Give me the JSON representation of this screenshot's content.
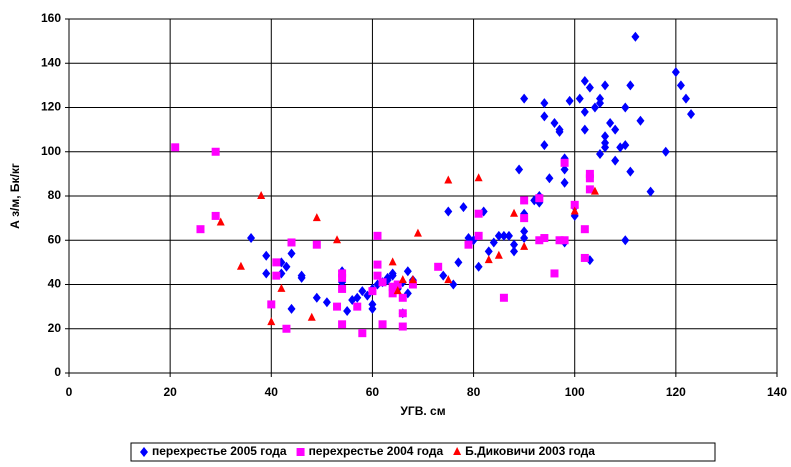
{
  "chart_data": {
    "type": "scatter",
    "x_label": "УГВ. см",
    "y_label": "А з/м, Бк/кг",
    "xlim": [
      0,
      140
    ],
    "xticks": [
      0,
      20,
      40,
      60,
      80,
      100,
      120,
      140
    ],
    "ylim": [
      0,
      160
    ],
    "yticks": [
      0,
      20,
      40,
      60,
      80,
      100,
      120,
      140,
      160
    ],
    "grid": true,
    "legend": "bottom",
    "series": [
      {
        "name": "перехрестье 2005 года",
        "color": "#0000ff",
        "marker": "diamond",
        "x": [
          36,
          39,
          39,
          42,
          42,
          43,
          44,
          44,
          46,
          46,
          49,
          51,
          54,
          54,
          55,
          56,
          57,
          58,
          59,
          60,
          60,
          60,
          61,
          62,
          63,
          63,
          64,
          64,
          65,
          66,
          66,
          67,
          67,
          68,
          74,
          76,
          77,
          75,
          78,
          79,
          80,
          81,
          82,
          83,
          84,
          85,
          86,
          87,
          88,
          88,
          89,
          90,
          90,
          90,
          90,
          92,
          93,
          93,
          94,
          94,
          94,
          95,
          96,
          97,
          97,
          98,
          98,
          98,
          98,
          99,
          100,
          100,
          101,
          102,
          102,
          102,
          103,
          103,
          104,
          105,
          105,
          106,
          106,
          106,
          106,
          105,
          107,
          108,
          108,
          109,
          110,
          110,
          110,
          111,
          111,
          112,
          113,
          115,
          118,
          120,
          121,
          122,
          123
        ],
        "values": [
          61,
          53,
          45,
          45,
          50,
          48,
          29,
          54,
          44,
          43,
          34,
          32,
          46,
          41,
          28,
          33,
          34,
          37,
          35,
          31,
          29,
          38,
          40,
          41,
          43,
          42,
          45,
          44,
          38,
          41,
          27,
          46,
          36,
          42,
          44,
          40,
          50,
          73,
          75,
          61,
          60,
          48,
          73,
          55,
          59,
          62,
          62,
          62,
          55,
          58,
          92,
          124,
          72,
          64,
          61,
          78,
          77,
          80,
          122,
          116,
          103,
          88,
          113,
          109,
          110,
          97,
          92,
          86,
          59,
          123,
          75,
          71,
          124,
          132,
          118,
          110,
          129,
          51,
          120,
          124,
          122,
          130,
          107,
          104,
          102,
          99,
          113,
          110,
          96,
          102,
          120,
          60,
          103,
          91,
          130,
          152,
          114,
          82,
          100,
          136,
          130,
          124,
          117
        ]
      },
      {
        "name": "перехрестье 2004 года",
        "color": "#ff00ff",
        "marker": "square",
        "x": [
          21,
          26,
          29,
          29,
          40,
          41,
          41,
          43,
          44,
          49,
          53,
          54,
          54,
          54,
          54,
          57,
          58,
          60,
          61,
          61,
          61,
          62,
          62,
          64,
          64,
          65,
          66,
          66,
          66,
          68,
          73,
          79,
          81,
          81,
          86,
          90,
          90,
          93,
          93,
          94,
          96,
          97,
          98,
          98,
          100,
          102,
          102,
          103,
          103,
          103
        ],
        "values": [
          102,
          65,
          100,
          71,
          31,
          50,
          44,
          20,
          59,
          58,
          30,
          22,
          38,
          45,
          43,
          30,
          18,
          37,
          62,
          49,
          44,
          22,
          41,
          36,
          39,
          40,
          27,
          34,
          21,
          40,
          48,
          58,
          62,
          72,
          34,
          78,
          70,
          60,
          79,
          61,
          45,
          60,
          60,
          95,
          76,
          52,
          65,
          88,
          90,
          83
        ]
      },
      {
        "name": "Б.Диковичи 2003 года",
        "color": "#ff0000",
        "marker": "triangle",
        "x": [
          30,
          34,
          38,
          40,
          42,
          48,
          49,
          53,
          64,
          65,
          66,
          68,
          69,
          75,
          75,
          81,
          83,
          85,
          88,
          90,
          100,
          104
        ],
        "values": [
          68,
          48,
          80,
          23,
          38,
          25,
          70,
          60,
          50,
          37,
          42,
          42,
          63,
          42,
          87,
          88,
          51,
          53,
          72,
          57,
          73,
          82
        ]
      }
    ]
  }
}
